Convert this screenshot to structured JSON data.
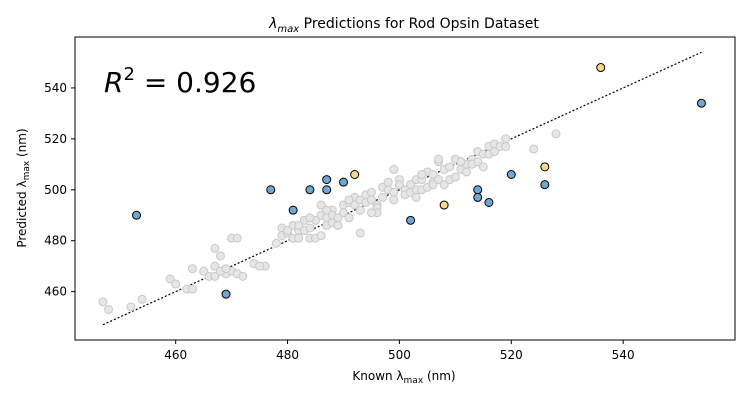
{
  "chart_data": {
    "type": "scatter",
    "title": {
      "prefix": "λ",
      "sub": "max",
      "suffix": " Predictions for Rod Opsin Dataset"
    },
    "xlabel": {
      "prefix": "Known λ",
      "sub": "max",
      "suffix": " (nm)"
    },
    "ylabel": {
      "prefix": "Predicted λ",
      "sub": "max",
      "suffix": " (nm)"
    },
    "annotation": {
      "base": "R",
      "sup": "2",
      "rest": " = 0.926"
    },
    "xlim": [
      442,
      560
    ],
    "ylim": [
      441,
      560
    ],
    "xticks": [
      460,
      480,
      500,
      520,
      540
    ],
    "yticks": [
      460,
      480,
      500,
      520,
      540
    ],
    "grid": false,
    "legend": "none",
    "reference_line": {
      "style": "dotted",
      "color": "#000000",
      "from": [
        447,
        447
      ],
      "to": [
        554,
        554
      ]
    },
    "colors": {
      "grey_fill": "#e6e6e6",
      "grey_edge": "#c8c8c8",
      "blue_fill": "#6fa8d2",
      "yellow_fill": "#fcd88a",
      "highlight_edge": "#000000"
    },
    "series": [
      {
        "group": "grey",
        "x": [
          447,
          448,
          452,
          454,
          459,
          460,
          462,
          463,
          463,
          465,
          466,
          467,
          467,
          468,
          469,
          470,
          471,
          472,
          474,
          476,
          467,
          468,
          470,
          478,
          479,
          479,
          480,
          481,
          481,
          482,
          482,
          483,
          483,
          484,
          484,
          485,
          485,
          486,
          486,
          487,
          487,
          488,
          488,
          488,
          489,
          489,
          490,
          490,
          491,
          491,
          492,
          492,
          493,
          493,
          494,
          494,
          495,
          495,
          496,
          496,
          497,
          497,
          498,
          498,
          499,
          499,
          500,
          500,
          501,
          501,
          502,
          502,
          503,
          503,
          504,
          504,
          505,
          505,
          506,
          506,
          507,
          507,
          508,
          508,
          509,
          509,
          510,
          510,
          511,
          511,
          512,
          512,
          513,
          513,
          514,
          514,
          515,
          515,
          516,
          516,
          517,
          517,
          518,
          519,
          519,
          524,
          528,
          480,
          482,
          486,
          489,
          493,
          496,
          500,
          504,
          484,
          487,
          491,
          495,
          499,
          503,
          507,
          511,
          471,
          469,
          475,
          506
        ],
        "y": [
          456,
          453,
          454,
          457,
          465,
          463,
          461,
          461,
          469,
          468,
          466,
          466,
          477,
          474,
          467,
          468,
          467,
          466,
          471,
          470,
          470,
          468,
          481,
          479,
          485,
          482,
          483,
          481,
          486,
          484,
          481,
          488,
          484,
          485,
          481,
          488,
          481,
          490,
          494,
          489,
          486,
          492,
          487,
          490,
          489,
          486,
          494,
          491,
          495,
          489,
          497,
          494,
          492,
          496,
          498,
          495,
          496,
          499,
          494,
          493,
          501,
          497,
          500,
          503,
          499,
          496,
          502,
          504,
          500,
          498,
          502,
          499,
          500,
          504,
          504,
          500,
          501,
          507,
          503,
          506,
          511,
          504,
          508,
          502,
          509,
          504,
          505,
          512,
          511,
          508,
          510,
          507,
          512,
          510,
          515,
          511,
          514,
          509,
          517,
          514,
          518,
          515,
          517,
          520,
          517,
          516,
          522,
          484,
          486,
          482,
          486,
          483,
          491,
          502,
          506,
          489,
          492,
          496,
          491,
          508,
          497,
          512,
          511,
          481,
          469,
          470,
          502
        ]
      },
      {
        "group": "blue",
        "x": [
          453,
          469,
          477,
          481,
          484,
          487,
          487,
          490,
          502,
          514,
          514,
          516,
          520,
          526,
          554
        ],
        "y": [
          490,
          459,
          500,
          492,
          500,
          504,
          500,
          503,
          488,
          500,
          497,
          495,
          506,
          502,
          534
        ]
      },
      {
        "group": "yellow",
        "x": [
          492,
          508,
          526,
          536
        ],
        "y": [
          506,
          494,
          509,
          548
        ]
      }
    ]
  }
}
